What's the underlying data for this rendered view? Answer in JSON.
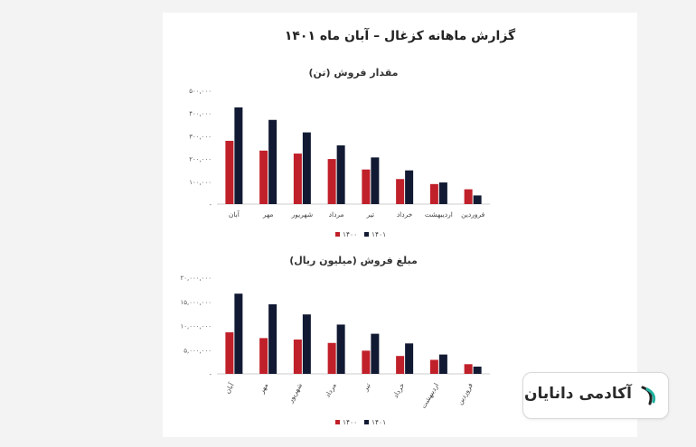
{
  "report_title": "گزارش ماهانه کزغال – آبان ماه ۱۴۰۱",
  "brand": {
    "name": "آکادمی دانایان"
  },
  "chart_data": [
    {
      "type": "bar",
      "title": "مقدار فروش (تن)",
      "categories": [
        "فروردین",
        "اردیبهشت",
        "خرداد",
        "تیر",
        "مرداد",
        "شهریور",
        "مهر",
        "آبان"
      ],
      "category_order": "right-to-left",
      "series": [
        {
          "name": "۱۴۰۰",
          "color": "#c0202a",
          "values": [
            65000,
            88000,
            110000,
            152000,
            198000,
            222000,
            235000,
            278000
          ]
        },
        {
          "name": "۱۴۰۱",
          "color": "#121a33",
          "values": [
            38000,
            95000,
            148000,
            205000,
            258000,
            315000,
            370000,
            425000
          ]
        }
      ],
      "ylim": [
        0,
        500000
      ],
      "yticks": [
        0,
        100000,
        200000,
        300000,
        400000,
        500000
      ],
      "ytick_labels": [
        "-",
        "۱۰۰,۰۰۰",
        "۲۰۰,۰۰۰",
        "۳۰۰,۰۰۰",
        "۴۰۰,۰۰۰",
        "۵۰۰,۰۰۰"
      ],
      "grid": false,
      "legend": "bottom"
    },
    {
      "type": "bar",
      "title": "مبلغ فروش (میلیون ریال)",
      "categories": [
        "فروردین",
        "اردیبهشت",
        "خرداد",
        "تیر",
        "مرداد",
        "شهریور",
        "مهر",
        "آبان"
      ],
      "category_order": "right-to-left",
      "series": [
        {
          "name": "۱۴۰۰",
          "color": "#c0202a",
          "values": [
            2000000,
            2900000,
            3700000,
            4800000,
            6400000,
            7100000,
            7400000,
            8600000
          ]
        },
        {
          "name": "۱۴۰۱",
          "color": "#121a33",
          "values": [
            1500000,
            4000000,
            6300000,
            8300000,
            10200000,
            12300000,
            14400000,
            16600000
          ]
        }
      ],
      "ylim": [
        0,
        20000000
      ],
      "yticks": [
        0,
        5000000,
        10000000,
        15000000,
        20000000
      ],
      "ytick_labels": [
        "-",
        "۵,۰۰۰,۰۰۰",
        "۱۰,۰۰۰,۰۰۰",
        "۱۵,۰۰۰,۰۰۰",
        "۲۰,۰۰۰,۰۰۰"
      ],
      "grid": false,
      "legend": "bottom"
    }
  ]
}
